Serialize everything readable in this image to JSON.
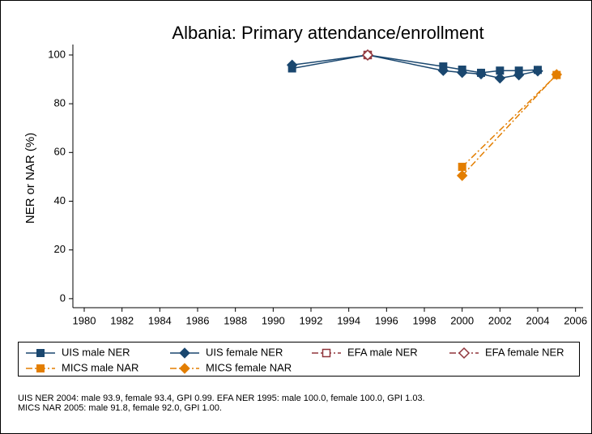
{
  "chart_data": {
    "type": "line",
    "title": "Albania: Primary attendance/enrollment",
    "y_label": "NER or NAR (%)",
    "xlim": [
      1979.4,
      2006.4
    ],
    "xticks": [
      1980,
      1982,
      1984,
      1986,
      1988,
      1990,
      1992,
      1994,
      1996,
      1998,
      2000,
      2002,
      2004,
      2006
    ],
    "ylim": [
      -3.7,
      104.3
    ],
    "yticks": [
      0,
      20,
      40,
      60,
      80,
      100
    ],
    "series": [
      {
        "name": "UIS male NER",
        "color": "#1a476f",
        "line_style": "solid",
        "marker": "square",
        "hollow": false,
        "x": [
          1991,
          1995,
          1999,
          2000,
          2001,
          2002,
          2003,
          2004
        ],
        "values": [
          94.5,
          100,
          95.3,
          94.0,
          92.7,
          93.6,
          93.6,
          93.9
        ]
      },
      {
        "name": "UIS female NER",
        "color": "#1a476f",
        "line_style": "solid",
        "marker": "diamond",
        "hollow": false,
        "x": [
          1991,
          1995,
          1999,
          2000,
          2001,
          2002,
          2003,
          2004
        ],
        "values": [
          95.9,
          100,
          93.6,
          92.8,
          92.2,
          90.5,
          91.8,
          93.4
        ]
      },
      {
        "name": "EFA male NER",
        "color": "#90353b",
        "line_style": "dash-dot",
        "marker": "square",
        "hollow": true,
        "x": [
          1995
        ],
        "values": [
          100
        ]
      },
      {
        "name": "EFA female NER",
        "color": "#90353b",
        "line_style": "dash-dot",
        "marker": "diamond",
        "hollow": true,
        "x": [
          1995
        ],
        "values": [
          100
        ]
      },
      {
        "name": "MICS male NAR",
        "color": "#e37e00",
        "line_style": "dash-dot",
        "marker": "square",
        "hollow": false,
        "x": [
          2000,
          2005
        ],
        "values": [
          54.1,
          91.8
        ]
      },
      {
        "name": "MICS female NAR",
        "color": "#e37e00",
        "line_style": "dash-dot",
        "marker": "diamond",
        "hollow": false,
        "x": [
          2000,
          2005
        ],
        "values": [
          50.5,
          92.0
        ]
      }
    ],
    "notes": [
      "UIS NER 2004: male 93.9, female 93.4, GPI 0.99. EFA NER 1995: male 100.0, female 100.0, GPI 1.03.",
      "MICS NAR 2005: male 91.8, female 92.0, GPI 1.00."
    ]
  }
}
